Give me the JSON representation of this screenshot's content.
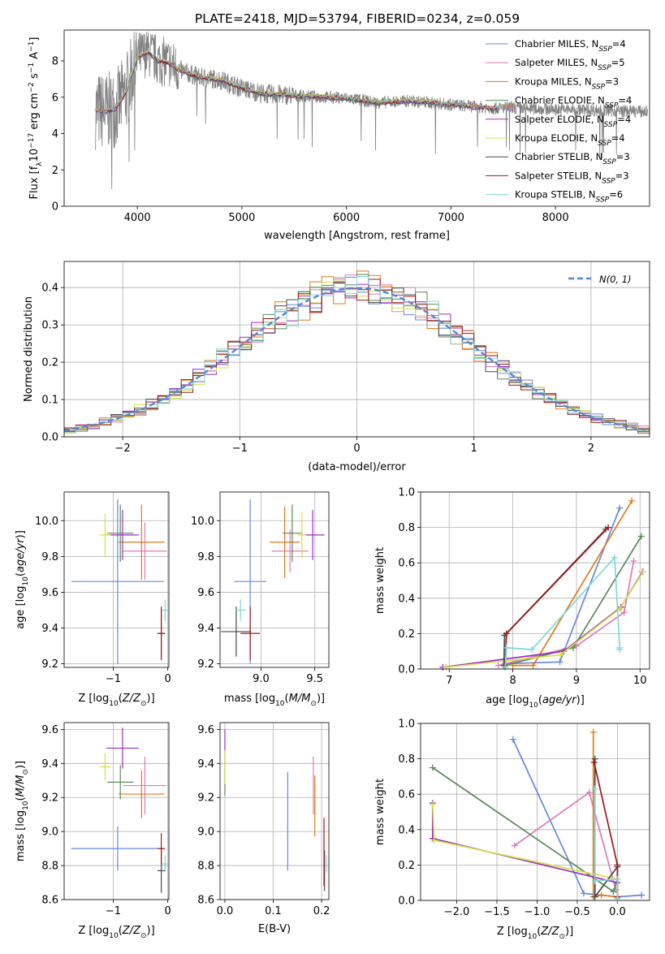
{
  "figure_title": "PLATE=2418, MJD=53794, FIBERID=0234, z=0.059",
  "colors": {
    "model": [
      "#6688dd",
      "#e07ab8",
      "#e07a1c",
      "#5a8a5a",
      "#9b2fbf",
      "#d6e04a",
      "#4a4a4a",
      "#a01818",
      "#7fd8d8"
    ],
    "data": "#808080",
    "gauss": "#5b84d6"
  },
  "chart_data": [
    {
      "id": "spectrum",
      "type": "line",
      "xlabel": "wavelength [Angstrom, rest frame]",
      "ylabel": "Flux [f_λ 10^-17 erg cm^-2 s^-1 A^-1]",
      "xlim": [
        3300,
        8900
      ],
      "ylim": [
        0,
        9.7
      ],
      "xticks": [
        "4000",
        "5000",
        "6000",
        "7000",
        "8000"
      ],
      "yticks": [
        "0",
        "2",
        "4",
        "6",
        "8"
      ],
      "grid": false,
      "legend_position": "top-right",
      "legend": [
        {
          "model": "Chabrier MILES",
          "nssp": "4"
        },
        {
          "model": "Salpeter MILES",
          "nssp": "5"
        },
        {
          "model": "Kroupa MILES",
          "nssp": "3"
        },
        {
          "model": "Chabrier ELODIE",
          "nssp": "4"
        },
        {
          "model": "Salpeter ELODIE",
          "nssp": "4"
        },
        {
          "model": "Kroupa ELODIE",
          "nssp": "4"
        },
        {
          "model": "Chabrier STELIB",
          "nssp": "3"
        },
        {
          "model": "Salpeter STELIB",
          "nssp": "3"
        },
        {
          "model": "Kroupa STELIB",
          "nssp": "6"
        }
      ],
      "nssp_prefix": "N",
      "nssp_sub": "SSP",
      "continuum": [
        [
          3600,
          5.3
        ],
        [
          3700,
          5.2
        ],
        [
          3800,
          5.4
        ],
        [
          3900,
          6.4
        ],
        [
          4000,
          8.2
        ],
        [
          4100,
          8.5
        ],
        [
          4200,
          8.0
        ],
        [
          4300,
          7.9
        ],
        [
          4400,
          7.5
        ],
        [
          4500,
          7.3
        ],
        [
          4600,
          7.1
        ],
        [
          4800,
          6.95
        ],
        [
          5000,
          6.5
        ],
        [
          5200,
          6.2
        ],
        [
          5500,
          6.1
        ],
        [
          5800,
          6.0
        ],
        [
          6000,
          5.95
        ],
        [
          6300,
          5.7
        ],
        [
          6600,
          5.8
        ],
        [
          7000,
          5.6
        ],
        [
          7400,
          5.4
        ],
        [
          7600,
          5.45
        ]
      ]
    },
    {
      "id": "residuals",
      "type": "histogram",
      "xlabel": "(data-model)/error",
      "ylabel": "Normed distribution",
      "xlim": [
        -2.5,
        2.5
      ],
      "ylim": [
        0,
        0.47
      ],
      "xticks": [
        "−2",
        "−1",
        "0",
        "1",
        "2"
      ],
      "yticks": [
        "0.0",
        "0.1",
        "0.2",
        "0.3",
        "0.4"
      ],
      "grid": true,
      "legend_position": "top-right",
      "gauss_label": "N(0, 1)",
      "gauss_mu": 0,
      "gauss_sigma": 1,
      "bin_width": 0.1
    },
    {
      "id": "age_vs_Z",
      "type": "errorbar",
      "xlabel": "Z [log10(Z/Z⊙)]",
      "ylabel": "age  [log10(age/yr)]",
      "xlim": [
        -1.9,
        0.02
      ],
      "ylim": [
        9.18,
        10.16
      ],
      "xticks": [
        {
          "v": -1,
          "l": "−1"
        },
        {
          "v": 0,
          "l": "0"
        }
      ],
      "yticks": [
        {
          "v": 9.2,
          "l": "9.2"
        },
        {
          "v": 9.4,
          "l": "9.4"
        },
        {
          "v": 9.6,
          "l": "9.6"
        },
        {
          "v": 9.8,
          "l": "9.8"
        },
        {
          "v": 10.0,
          "l": "10.0"
        }
      ],
      "points": [
        {
          "x": -0.92,
          "xe": 0.85,
          "y": 9.66,
          "ye": 0.46
        },
        {
          "x": -0.42,
          "xe": 0.4,
          "y": 9.83,
          "ye": 0.16
        },
        {
          "x": -0.48,
          "xe": 0.42,
          "y": 9.88,
          "ye": 0.21
        },
        {
          "x": -0.87,
          "xe": 0.24,
          "y": 9.93,
          "ye": 0.16
        },
        {
          "x": -0.83,
          "xe": 0.3,
          "y": 9.92,
          "ye": 0.14
        },
        {
          "x": -1.15,
          "xe": 0.1,
          "y": 9.92,
          "ye": 0.12
        },
        {
          "x": -0.12,
          "xe": 0.07,
          "y": 9.37,
          "ye": 0.13
        },
        {
          "x": -0.12,
          "xe": 0.07,
          "y": 9.37,
          "ye": 0.15
        },
        {
          "x": -0.05,
          "xe": 0.06,
          "y": 9.5,
          "ye": 0.06
        }
      ]
    },
    {
      "id": "age_vs_mass",
      "type": "errorbar",
      "xlabel": "mass [log10(M/M⊙)]",
      "ylabel": "",
      "xlim": [
        8.62,
        9.63
      ],
      "ylim": [
        9.18,
        10.16
      ],
      "xticks": [
        {
          "v": 9.0,
          "l": "9.0"
        },
        {
          "v": 9.5,
          "l": "9.5"
        }
      ],
      "yticks": [
        {
          "v": 9.2,
          "l": "9.2"
        },
        {
          "v": 9.4,
          "l": "9.4"
        },
        {
          "v": 9.6,
          "l": "9.6"
        },
        {
          "v": 9.8,
          "l": "9.8"
        },
        {
          "v": 10.0,
          "l": "10.0"
        }
      ],
      "points": [
        {
          "x": 8.9,
          "xe": 0.15,
          "y": 9.66,
          "ye": 0.46
        },
        {
          "x": 9.27,
          "xe": 0.17,
          "y": 9.83,
          "ye": 0.12
        },
        {
          "x": 9.22,
          "xe": 0.14,
          "y": 9.88,
          "ye": 0.2
        },
        {
          "x": 9.29,
          "xe": 0.09,
          "y": 9.93,
          "ye": 0.16
        },
        {
          "x": 9.48,
          "xe": 0.11,
          "y": 9.92,
          "ye": 0.14
        },
        {
          "x": 9.38,
          "xe": 0.04,
          "y": 9.92,
          "ye": 0.13
        },
        {
          "x": 8.77,
          "xe": 0.14,
          "y": 9.38,
          "ye": 0.14
        },
        {
          "x": 8.9,
          "xe": 0.09,
          "y": 9.37,
          "ye": 0.15
        },
        {
          "x": 8.81,
          "xe": 0.05,
          "y": 9.5,
          "ye": 0.06
        }
      ]
    },
    {
      "id": "weight_vs_age",
      "type": "line",
      "xlabel": "age  [log10(age/yr)]",
      "ylabel": "mass weight",
      "xlim": [
        6.55,
        10.15
      ],
      "ylim": [
        0,
        1.0
      ],
      "xticks": [
        {
          "v": 7,
          "l": "7"
        },
        {
          "v": 8,
          "l": "8"
        },
        {
          "v": 9,
          "l": "9"
        },
        {
          "v": 10,
          "l": "10"
        }
      ],
      "yticks": [
        {
          "v": 0,
          "l": "0.0"
        },
        {
          "v": 0.2,
          "l": "0.2"
        },
        {
          "v": 0.4,
          "l": "0.4"
        },
        {
          "v": 0.6,
          "l": "0.6"
        },
        {
          "v": 0.8,
          "l": "0.8"
        },
        {
          "v": 1.0,
          "l": "1.0"
        }
      ],
      "series": [
        {
          "x": [
            7.88,
            8.74,
            9.68
          ],
          "y": [
            0.03,
            0.04,
            0.91
          ]
        },
        {
          "x": [
            7.77,
            9.0,
            9.75,
            9.9
          ],
          "y": [
            0.02,
            0.13,
            0.32,
            0.61
          ]
        },
        {
          "x": [
            8.0,
            8.32,
            9.87
          ],
          "y": [
            0.02,
            0.02,
            0.95
          ]
        },
        {
          "x": [
            7.88,
            8.95,
            10.02
          ],
          "y": [
            0.02,
            0.12,
            0.75
          ]
        },
        {
          "x": [
            6.9,
            8.8,
            9.7,
            10.04
          ],
          "y": [
            0.01,
            0.1,
            0.35,
            0.55
          ]
        },
        {
          "x": [
            6.95,
            8.75,
            9.68,
            10.05
          ],
          "y": [
            0.01,
            0.08,
            0.34,
            0.55
          ]
        },
        {
          "x": [
            7.86,
            7.87,
            9.46
          ],
          "y": [
            0.02,
            0.19,
            0.79
          ]
        },
        {
          "x": [
            7.88,
            7.9,
            9.5
          ],
          "y": [
            0.01,
            0.2,
            0.8
          ]
        },
        {
          "x": [
            7.88,
            7.9,
            8.3,
            9.6,
            9.68,
            9.68
          ],
          "y": [
            0.01,
            0.12,
            0.11,
            0.63,
            0.12,
            0.11
          ]
        }
      ]
    },
    {
      "id": "mass_vs_Z",
      "type": "errorbar",
      "xlabel": "Z [log10(Z/Z⊙)]",
      "ylabel": "mass [log10(M/M⊙)]",
      "xlim": [
        -1.9,
        0.02
      ],
      "ylim": [
        8.6,
        9.64
      ],
      "xticks": [
        {
          "v": -1,
          "l": "−1"
        },
        {
          "v": 0,
          "l": "0"
        }
      ],
      "yticks": [
        {
          "v": 8.6,
          "l": "8.6"
        },
        {
          "v": 8.8,
          "l": "8.8"
        },
        {
          "v": 9.0,
          "l": "9.0"
        },
        {
          "v": 9.2,
          "l": "9.2"
        },
        {
          "v": 9.4,
          "l": "9.4"
        },
        {
          "v": 9.6,
          "l": "9.6"
        }
      ],
      "points": [
        {
          "x": -0.92,
          "xe": 0.85,
          "y": 8.9,
          "ye": 0.13
        },
        {
          "x": -0.42,
          "xe": 0.4,
          "y": 9.27,
          "ye": 0.17
        },
        {
          "x": -0.48,
          "xe": 0.42,
          "y": 9.22,
          "ye": 0.14
        },
        {
          "x": -0.87,
          "xe": 0.24,
          "y": 9.29,
          "ye": 0.1
        },
        {
          "x": -0.83,
          "xe": 0.3,
          "y": 9.49,
          "ye": 0.12
        },
        {
          "x": -1.15,
          "xe": 0.1,
          "y": 9.38,
          "ye": 0.08
        },
        {
          "x": -0.12,
          "xe": 0.07,
          "y": 8.77,
          "ye": 0.13
        },
        {
          "x": -0.12,
          "xe": 0.07,
          "y": 8.9,
          "ye": 0.09
        },
        {
          "x": -0.05,
          "xe": 0.06,
          "y": 8.81,
          "ye": 0.05
        }
      ]
    },
    {
      "id": "mass_vs_ebv",
      "type": "errorbar",
      "xlabel": "E(B-V)",
      "ylabel": "",
      "xlim": [
        -0.01,
        0.215
      ],
      "ylim": [
        8.6,
        9.64
      ],
      "xticks": [
        {
          "v": 0.0,
          "l": "0.0"
        },
        {
          "v": 0.1,
          "l": "0.1"
        },
        {
          "v": 0.2,
          "l": "0.2"
        }
      ],
      "yticks": [
        {
          "v": 8.6,
          "l": "8.6"
        },
        {
          "v": 8.8,
          "l": "8.8"
        },
        {
          "v": 9.0,
          "l": "9.0"
        },
        {
          "v": 9.2,
          "l": "9.2"
        },
        {
          "v": 9.4,
          "l": "9.4"
        },
        {
          "v": 9.6,
          "l": "9.6"
        }
      ],
      "points": [
        {
          "x": 0.13,
          "xe": 0,
          "y": 9.06,
          "ye": 0.29
        },
        {
          "x": 0.183,
          "xe": 0,
          "y": 9.27,
          "ye": 0.17
        },
        {
          "x": 0.186,
          "xe": 0,
          "y": 9.15,
          "ye": 0.18
        },
        {
          "x": 0.0,
          "xe": 0,
          "y": 9.31,
          "ye": 0.1
        },
        {
          "x": 0.0,
          "xe": 0,
          "y": 9.5,
          "ye": 0.1
        },
        {
          "x": 0.0,
          "xe": 0,
          "y": 9.38,
          "ye": 0.1
        },
        {
          "x": 0.206,
          "xe": 0,
          "y": 8.77,
          "ye": 0.12
        },
        {
          "x": 0.205,
          "xe": 0,
          "y": 8.88,
          "ye": 0.2
        },
        {
          "x": 0.21,
          "xe": 0,
          "y": 8.81,
          "ye": 0.05
        }
      ]
    },
    {
      "id": "weight_vs_Z",
      "type": "line",
      "xlabel": "Z [log10(Z/Z⊙)]",
      "ylabel": "mass weight",
      "xlim": [
        -2.45,
        0.4
      ],
      "ylim": [
        0,
        1.0
      ],
      "xticks": [
        {
          "v": -2.0,
          "l": "−2.0"
        },
        {
          "v": -1.5,
          "l": "−1.5"
        },
        {
          "v": -1.0,
          "l": "−1.0"
        },
        {
          "v": -0.5,
          "l": "−0.5"
        },
        {
          "v": 0.0,
          "l": "0.0"
        }
      ],
      "yticks": [
        {
          "v": 0,
          "l": "0.0"
        },
        {
          "v": 0.2,
          "l": "0.2"
        },
        {
          "v": 0.4,
          "l": "0.4"
        },
        {
          "v": 0.6,
          "l": "0.6"
        },
        {
          "v": 0.8,
          "l": "0.8"
        },
        {
          "v": 1.0,
          "l": "1.0"
        }
      ],
      "series": [
        {
          "x": [
            -1.3,
            -0.42,
            0.0,
            0.3
          ],
          "y": [
            0.91,
            0.04,
            0.02,
            0.03
          ]
        },
        {
          "x": [
            -1.28,
            -0.35,
            -0.02
          ],
          "y": [
            0.31,
            0.61,
            0.06
          ]
        },
        {
          "x": [
            -0.3,
            -0.3,
            -0.2,
            0.0
          ],
          "y": [
            0.95,
            0.02,
            0.03,
            0.02
          ]
        },
        {
          "x": [
            -2.3,
            -0.05,
            0.0
          ],
          "y": [
            0.75,
            0.05,
            0.12
          ]
        },
        {
          "x": [
            -2.3,
            -2.3,
            0.0
          ],
          "y": [
            0.55,
            0.35,
            0.1
          ]
        },
        {
          "x": [
            -2.3,
            -2.28,
            0.0
          ],
          "y": [
            0.54,
            0.34,
            0.12
          ]
        },
        {
          "x": [
            -0.28,
            -0.28,
            0.0,
            0.0
          ],
          "y": [
            0.8,
            0.02,
            0.19,
            0.01
          ]
        },
        {
          "x": [
            -0.29,
            0.0,
            0.0
          ],
          "y": [
            0.78,
            0.2,
            0.02
          ]
        },
        {
          "x": [
            -0.28,
            -0.28,
            0.0,
            0.0
          ],
          "y": [
            0.63,
            0.11,
            0.12,
            0.01
          ]
        }
      ]
    }
  ]
}
